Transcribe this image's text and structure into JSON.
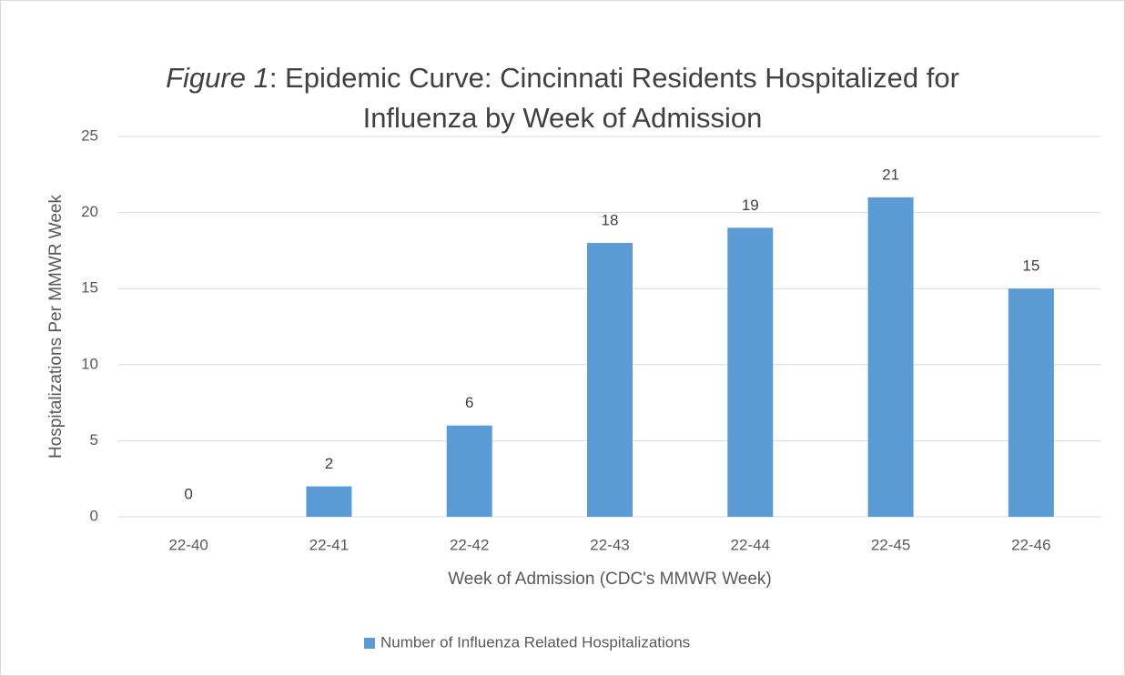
{
  "chart_data": {
    "type": "bar",
    "title": [
      "Figure 1",
      ": Epidemic Curve: Cincinnati Residents Hospitalized for",
      "Influenza by Week of Admission"
    ],
    "x_label": "Week of Admission (CDC's MMWR Week)",
    "y_label": "Hospitalizations Per MMWR Week",
    "categories": [
      "22-40",
      "22-41",
      "22-42",
      "22-43",
      "22-44",
      "22-45",
      "22-46"
    ],
    "series": [
      {
        "name": "Number of Influenza Related Hospitalizations",
        "color": "#5b9bd5",
        "values": [
          0,
          2,
          6,
          18,
          19,
          21,
          15
        ]
      }
    ],
    "ylim": [
      0,
      25
    ],
    "yticks": [
      0,
      5,
      10,
      15,
      20,
      25
    ],
    "grid": true,
    "legend": "bottom"
  }
}
